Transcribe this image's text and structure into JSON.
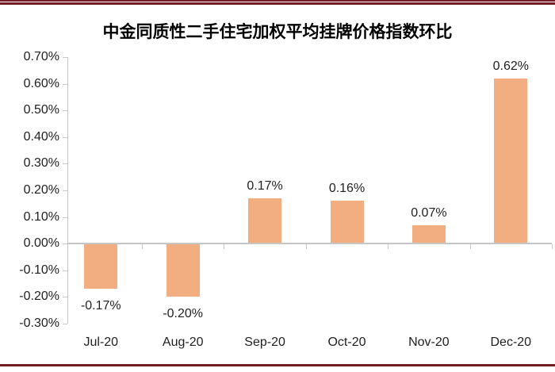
{
  "header": {
    "title": "中金同质性二手住宅加权平均挂牌价格指数环比"
  },
  "chart_data": {
    "type": "bar",
    "title": "中金同质性二手住宅加权平均挂牌价格指数环比",
    "categories": [
      "Jul-20",
      "Aug-20",
      "Sep-20",
      "Oct-20",
      "Nov-20",
      "Dec-20"
    ],
    "values": [
      -0.17,
      -0.2,
      0.17,
      0.16,
      0.07,
      0.62
    ],
    "data_labels": [
      "-0.17%",
      "-0.20%",
      "0.17%",
      "0.16%",
      "0.07%",
      "0.62%"
    ],
    "unit": "percent",
    "xlabel": "",
    "ylabel": "",
    "y_axis": {
      "min": -0.3,
      "max": 0.7,
      "step": 0.1,
      "tick_labels": [
        "0.70%",
        "0.60%",
        "0.50%",
        "0.40%",
        "0.30%",
        "0.20%",
        "0.10%",
        "0.00%",
        "-0.10%",
        "-0.20%",
        "-0.30%"
      ]
    },
    "grid": false,
    "legend": "none",
    "colors": {
      "bar": "#F2AE81",
      "axis": "#C6C6C6",
      "accent_rule": "#731C23",
      "text": "#1F1F1F",
      "title_text": "#000000"
    }
  }
}
